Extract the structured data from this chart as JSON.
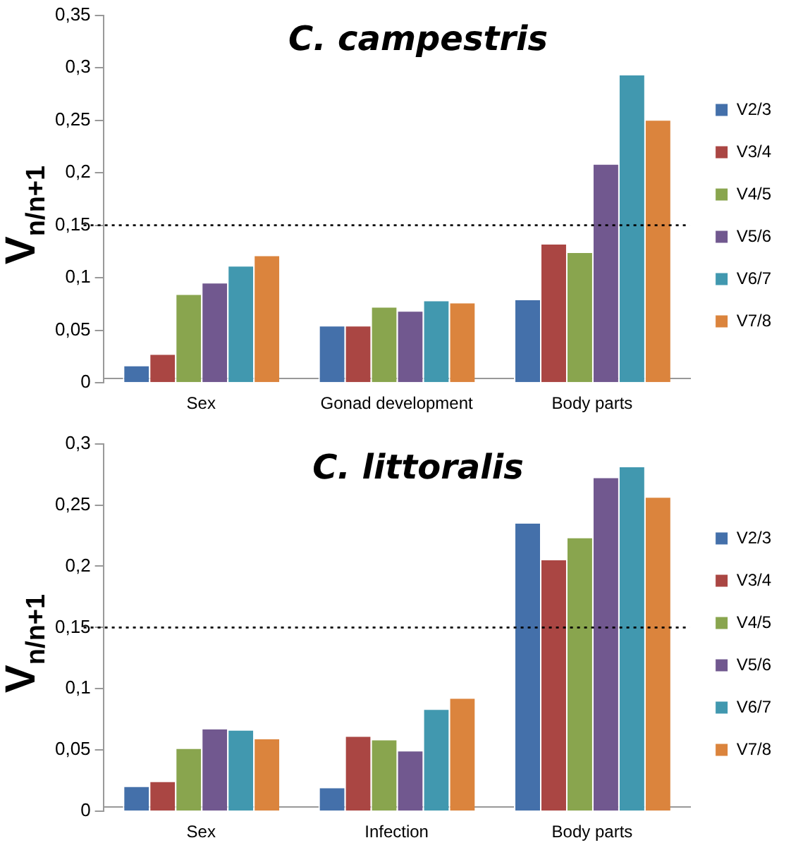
{
  "chart_data": [
    {
      "type": "bar",
      "title": "C. campestris",
      "ylabel": "V$_{n/n+1}$",
      "categories": [
        "Sex",
        "Gonad development",
        "Body parts"
      ],
      "series": [
        {
          "name": "V2/3",
          "color": "#4470aa",
          "values": [
            0.017,
            0.055,
            0.08
          ]
        },
        {
          "name": "V3/4",
          "color": "#aa4643",
          "values": [
            0.028,
            0.055,
            0.133
          ]
        },
        {
          "name": "V4/5",
          "color": "#89a54e",
          "values": [
            0.085,
            0.073,
            0.125
          ]
        },
        {
          "name": "V5/6",
          "color": "#71588f",
          "values": [
            0.096,
            0.069,
            0.209
          ]
        },
        {
          "name": "V6/7",
          "color": "#4198af",
          "values": [
            0.112,
            0.079,
            0.294
          ]
        },
        {
          "name": "V7/8",
          "color": "#db843d",
          "values": [
            0.122,
            0.077,
            0.251
          ]
        }
      ],
      "ylim": [
        0,
        0.35
      ],
      "yticks": [
        {
          "value": 0,
          "label": "0"
        },
        {
          "value": 0.05,
          "label": "0,05"
        },
        {
          "value": 0.1,
          "label": "0,1"
        },
        {
          "value": 0.15,
          "label": "0,15"
        },
        {
          "value": 0.2,
          "label": "0,2"
        },
        {
          "value": 0.25,
          "label": "0,25"
        },
        {
          "value": 0.3,
          "label": "0,3"
        },
        {
          "value": 0.35,
          "label": "0,35"
        }
      ],
      "ref_lines": [
        {
          "axis": "y",
          "value": 0.15,
          "color": "#000000",
          "line_style": "dotted"
        }
      ],
      "grid": false,
      "legend": "right"
    },
    {
      "type": "bar",
      "title": "C. littoralis",
      "ylabel": "V$_{n/n+1}$",
      "categories": [
        "Sex",
        "Infection",
        "Body parts"
      ],
      "series": [
        {
          "name": "V2/3",
          "color": "#4470aa",
          "values": [
            0.021,
            0.02,
            0.236
          ]
        },
        {
          "name": "V3/4",
          "color": "#aa4643",
          "values": [
            0.025,
            0.062,
            0.206
          ]
        },
        {
          "name": "V4/5",
          "color": "#89a54e",
          "values": [
            0.052,
            0.059,
            0.224
          ]
        },
        {
          "name": "V5/6",
          "color": "#71588f",
          "values": [
            0.068,
            0.05,
            0.273
          ]
        },
        {
          "name": "V6/7",
          "color": "#4198af",
          "values": [
            0.067,
            0.084,
            0.282
          ]
        },
        {
          "name": "V7/8",
          "color": "#db843d",
          "values": [
            0.06,
            0.093,
            0.257
          ]
        }
      ],
      "ylim": [
        0,
        0.3
      ],
      "yticks": [
        {
          "value": 0,
          "label": "0"
        },
        {
          "value": 0.05,
          "label": "0,05"
        },
        {
          "value": 0.1,
          "label": "0,1"
        },
        {
          "value": 0.15,
          "label": "0,15"
        },
        {
          "value": 0.2,
          "label": "0,2"
        },
        {
          "value": 0.25,
          "label": "0,25"
        },
        {
          "value": 0.3,
          "label": "0,3"
        }
      ],
      "ref_lines": [
        {
          "axis": "y",
          "value": 0.15,
          "color": "#000000",
          "line_style": "dotted"
        }
      ],
      "grid": false,
      "legend": "right"
    }
  ]
}
